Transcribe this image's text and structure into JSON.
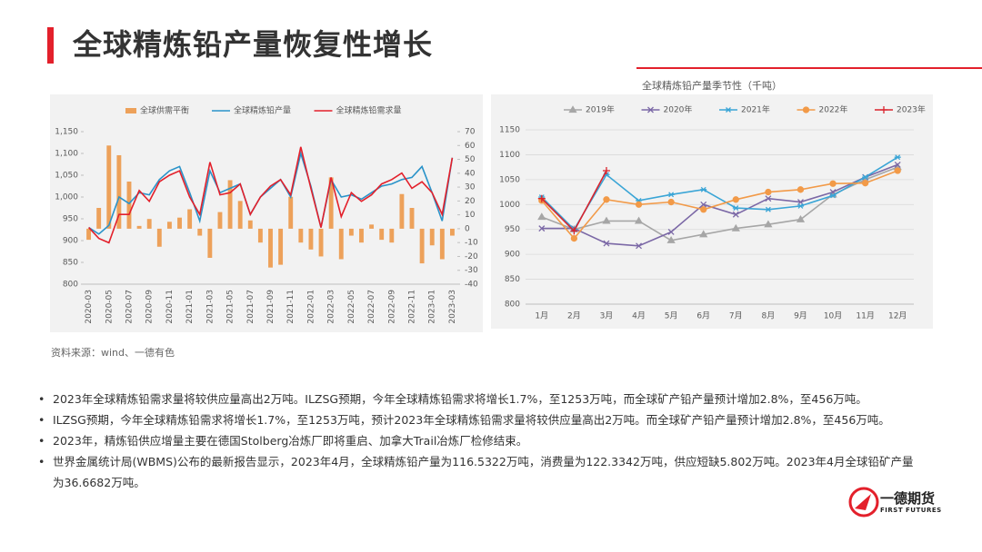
{
  "header": {
    "title": "全球精炼铅产量恢复性增长"
  },
  "chart_data": [
    {
      "type": "combo",
      "categories": [
        "2020-03",
        null,
        "2020-05",
        null,
        "2020-07",
        null,
        "2020-09",
        null,
        "2020-11",
        null,
        "2021-01",
        null,
        "2021-03",
        null,
        "2021-05",
        null,
        "2021-07",
        null,
        "2021-09",
        null,
        "2021-11",
        null,
        "2022-01",
        null,
        "2022-03",
        null,
        "2022-05",
        null,
        "2022-07",
        null,
        "2022-09",
        null,
        "2022-11",
        null,
        "2023-01",
        null,
        "2023-03"
      ],
      "series": [
        {
          "name": "全球供需平衡",
          "kind": "bar",
          "axis": "y2",
          "color": "#eda15a",
          "values": [
            -8,
            15,
            60,
            53,
            34,
            2,
            7,
            -13,
            5,
            8,
            14,
            -5,
            -21,
            12,
            35,
            20,
            6,
            -10,
            -28,
            -26,
            23,
            -10,
            -15,
            -20,
            37,
            -22,
            -5,
            -10,
            3,
            -8,
            -10,
            25,
            15,
            -25,
            -12,
            -22,
            -5
          ]
        },
        {
          "name": "全球精炼铅产量",
          "kind": "line",
          "color": "#2a93c9",
          "values": [
            930,
            915,
            935,
            1000,
            985,
            1010,
            1005,
            1040,
            1060,
            1070,
            1010,
            945,
            1060,
            1010,
            1020,
            1030,
            960,
            1000,
            1020,
            1040,
            1000,
            1100,
            1025,
            930,
            1040,
            1000,
            1005,
            995,
            1010,
            1025,
            1030,
            1040,
            1045,
            1070,
            1010,
            945,
            1090
          ]
        },
        {
          "name": "全球精炼铅需求量",
          "kind": "line",
          "color": "#e3202b",
          "values": [
            930,
            905,
            895,
            960,
            960,
            1015,
            990,
            1035,
            1050,
            1060,
            1000,
            960,
            1080,
            1005,
            1010,
            1030,
            960,
            1000,
            1025,
            1040,
            1005,
            1115,
            1020,
            930,
            1045,
            955,
            1010,
            990,
            1005,
            1030,
            1040,
            1055,
            1020,
            1035,
            1010,
            960,
            1090
          ]
        }
      ],
      "ylim": [
        800,
        1150
      ],
      "yticks": [
        800,
        850,
        900,
        950,
        {
          "value": 1000,
          "label": "1,000"
        },
        {
          "value": 1050,
          "label": "1,050"
        },
        {
          "value": 1100,
          "label": "1,100"
        },
        {
          "value": 1150,
          "label": "1,150"
        }
      ],
      "y2lim": [
        -40,
        70
      ],
      "y2ticks": [
        -40,
        -30,
        -20,
        -10,
        0,
        10,
        20,
        30,
        40,
        50,
        60,
        70
      ],
      "grid": false,
      "legend": "top"
    },
    {
      "type": "line",
      "title": "全球精炼铅产量季节性（千吨）",
      "categories": [
        "1月",
        "2月",
        "3月",
        "4月",
        "5月",
        "6月",
        "7月",
        "8月",
        "9月",
        "10月",
        "11月",
        "12月"
      ],
      "series": [
        {
          "name": "2019年",
          "color": "#a6a6a6",
          "marker": "triangle",
          "values": [
            975,
            950,
            967,
            967,
            928,
            940,
            952,
            960,
            970,
            1020,
            1050,
            1075
          ]
        },
        {
          "name": "2020年",
          "color": "#7b68a6",
          "marker": "x",
          "values": [
            952,
            952,
            922,
            917,
            945,
            1000,
            980,
            1012,
            1005,
            1025,
            1055,
            1080
          ]
        },
        {
          "name": "2021年",
          "color": "#3aa5d6",
          "marker": "star",
          "values": [
            1015,
            950,
            1060,
            1008,
            1020,
            1030,
            993,
            990,
            997,
            1018,
            1055,
            1095
          ]
        },
        {
          "name": "2022年",
          "color": "#f29a48",
          "marker": "circle",
          "values": [
            1008,
            932,
            1010,
            1000,
            1005,
            990,
            1010,
            1025,
            1030,
            1042,
            1043,
            1068
          ]
        },
        {
          "name": "2023年",
          "color": "#d9232d",
          "marker": "plus",
          "values": [
            1012,
            947,
            1068,
            null,
            null,
            null,
            null,
            null,
            null,
            null,
            null,
            null
          ]
        }
      ],
      "ylim": [
        800,
        1150
      ],
      "yticks": [
        800,
        850,
        900,
        950,
        1000,
        1050,
        1100,
        1150
      ],
      "grid": true,
      "legend": "top"
    }
  ],
  "source": "资料来源：wind、一德有色",
  "bullets": [
    "2023年全球精炼铅需求量将较供应量高出2万吨。ILZSG预期，今年全球精炼铅需求将增长1.7%，至1253万吨，而全球矿产铅产量预计增加2.8%，至456万吨。",
    "ILZSG预期，今年全球精炼铅需求将增长1.7%，至1253万吨，预计2023年全球精炼铅需求量将较供应量高出2万吨。而全球矿产铅产量预计增加2.8%，至456万吨。",
    "2023年，精炼铅供应增量主要在德国Stolberg冶炼厂即将重启、加拿大Trail冶炼厂检修结束。",
    "世界金属统计局(WBMS)公布的最新报告显示，2023年4月，全球精炼铅产量为116.5322万吨，消费量为122.3342万吨，供应短缺5.802万吨。2023年4月全球铅矿产量为36.6682万吨。"
  ],
  "logo": {
    "name": "一德期货",
    "subtitle": "FIRST FUTURES"
  }
}
